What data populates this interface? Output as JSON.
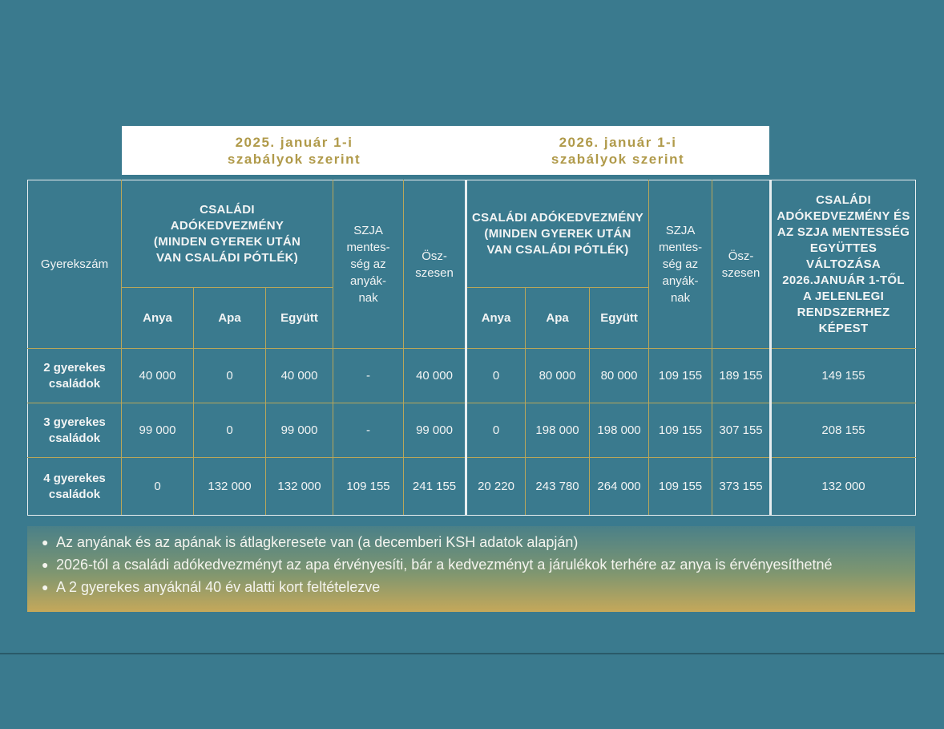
{
  "banner": {
    "col_2025": "2025. január 1-i\nszabályok szerint",
    "col_2026": "2026. január 1-i\nszabályok szerint"
  },
  "headers": {
    "gyerekszam": "Gyerekszám",
    "csaladi_2025": "CSALÁDI\nADÓKEDVEZMÉNY\n(MINDEN GYEREK UTÁN\nVAN CSALÁDI PÓTLÉK)",
    "szja_2025": "SZJA\nmentes-\nség az\nanyák-\nnak",
    "osszesen_2025": "Ösz-\nszesen",
    "csaladi_2026": "CSALÁDI ADÓKEDVEZMÉNY\n(MINDEN GYEREK UTÁN\nVAN CSALÁDI PÓTLÉK)",
    "szja_2026": "SZJA\nmentes-\nség az\nanyák-\nnak",
    "osszesen_2026": "Ösz-\nszesen",
    "valtozas": "CSALÁDI\nADÓKEDVEZMÉNY ÉS\nAZ SZJA MENTESSÉG\nEGYÜTTES\nVÁLTOZÁSA\n2026.JANUÁR 1-TŐL\nA JELENLEGI\nRENDSZERHEZ KÉPEST",
    "anya": "Anya",
    "apa": "Apa",
    "egyutt": "Együtt"
  },
  "rows": [
    {
      "label": "2 gyerekes\ncsaládok",
      "anya_2025": "40 000",
      "apa_2025": "0",
      "egyutt_2025": "40 000",
      "szja_2025": "-",
      "ossz_2025": "40 000",
      "anya_2026": "0",
      "apa_2026": "80 000",
      "egyutt_2026": "80 000",
      "szja_2026": "109 155",
      "ossz_2026": "189 155",
      "valtozas": "149 155"
    },
    {
      "label": "3 gyerekes\ncsaládok",
      "anya_2025": "99 000",
      "apa_2025": "0",
      "egyutt_2025": "99 000",
      "szja_2025": "-",
      "ossz_2025": "99 000",
      "anya_2026": "0",
      "apa_2026": "198 000",
      "egyutt_2026": "198 000",
      "szja_2026": "109 155",
      "ossz_2026": "307 155",
      "valtozas": "208 155"
    },
    {
      "label": "4 gyerekes\ncsaládok",
      "anya_2025": "0",
      "apa_2025": "132 000",
      "egyutt_2025": "132 000",
      "szja_2025": "109 155",
      "ossz_2025": "241 155",
      "anya_2026": "20 220",
      "apa_2026": "243 780",
      "egyutt_2026": "264 000",
      "szja_2026": "109 155",
      "ossz_2026": "373 155",
      "valtozas": "132 000"
    }
  ],
  "notes": [
    "Az anyának és az apának is átlagkeresete van (a decemberi KSH adatok alapján)",
    "2026-tól a családi adókedvezményt az apa érvényesíti, bár a kedvezményt a járulékok terhére az anya is érvényesíthetné",
    "A 2 gyerekes anyáknál 40 év alatti kort feltételezve"
  ],
  "colors": {
    "background": "#3a7a8e",
    "gold": "#b09a4a",
    "grid_line": "#b8a65a"
  }
}
